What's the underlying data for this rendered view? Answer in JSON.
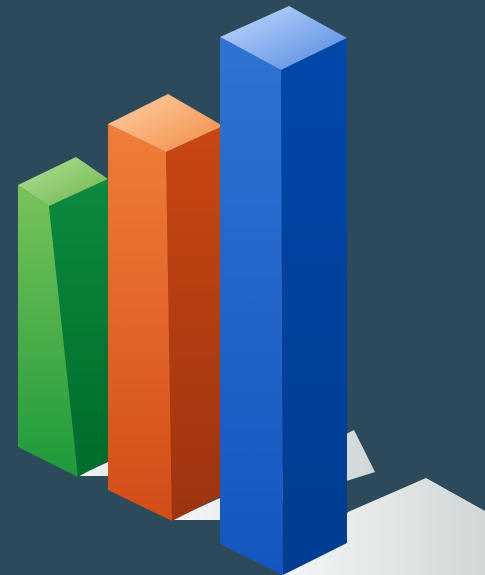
{
  "icon": {
    "name": "bar-chart-3d-icon",
    "background": "#2d4a5b",
    "bars": [
      {
        "name": "green-bar",
        "relative_height": 0.48,
        "colors": {
          "top_light": "#b8e19a",
          "top_dark": "#67b64b",
          "front_light": "#78c35a",
          "front_dark": "#1d9a3a",
          "side_light": "#0c8a3f",
          "side_dark": "#006c2a"
        }
      },
      {
        "name": "orange-bar",
        "relative_height": 0.67,
        "colors": {
          "top_light": "#ffd1a7",
          "top_dark": "#f08a42",
          "front_light": "#f07d38",
          "front_dark": "#d34d17",
          "side_light": "#c94712",
          "side_dark": "#9d3410"
        }
      },
      {
        "name": "blue-bar",
        "relative_height": 1.0,
        "colors": {
          "top_light": "#c5dcff",
          "top_dark": "#4f87de",
          "front_light": "#2f74d3",
          "front_dark": "#1356c0",
          "side_light": "#0047a9",
          "side_dark": "#003d92"
        }
      }
    ],
    "shadow_color": "#e9ecea"
  }
}
